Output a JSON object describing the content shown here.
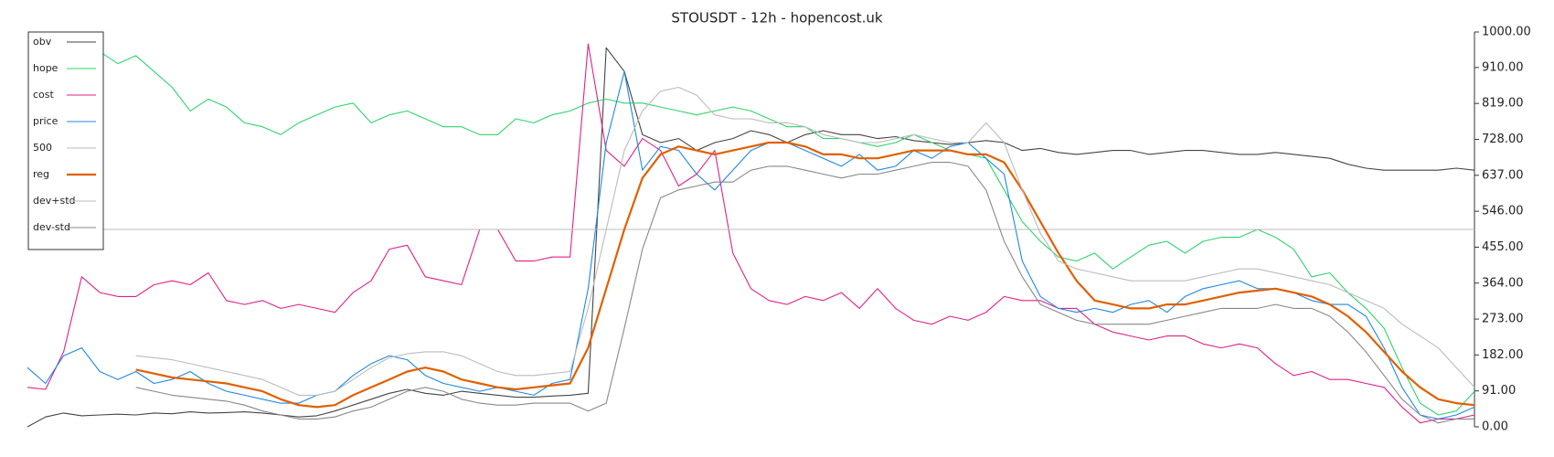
{
  "chart_data": {
    "type": "line",
    "title": "STOUSDT - 12h - hopencost.uk",
    "ylim": [
      0,
      1000
    ],
    "yticks": [
      {
        "value": 0,
        "label": "0.00"
      },
      {
        "value": 91,
        "label": "91.00"
      },
      {
        "value": 182,
        "label": "182.00"
      },
      {
        "value": 273,
        "label": "273.00"
      },
      {
        "value": 364,
        "label": "364.00"
      },
      {
        "value": 455,
        "label": "455.00"
      },
      {
        "value": 546,
        "label": "546.00"
      },
      {
        "value": 637,
        "label": "637.00"
      },
      {
        "value": 728,
        "label": "728.00"
      },
      {
        "value": 819,
        "label": "819.00"
      },
      {
        "value": 910,
        "label": "910.00"
      },
      {
        "value": 1000,
        "label": "1000.00"
      }
    ],
    "y_axis_side": "right",
    "legend": "upper left",
    "grid": false,
    "series": [
      {
        "name": "obv",
        "color": "#444444",
        "values": [
          0,
          25,
          35,
          28,
          30,
          32,
          30,
          35,
          33,
          38,
          35,
          36,
          38,
          35,
          30,
          25,
          28,
          40,
          55,
          70,
          85,
          95,
          85,
          80,
          90,
          85,
          80,
          75,
          75,
          78,
          80,
          85,
          960,
          900,
          740,
          720,
          730,
          700,
          720,
          730,
          750,
          740,
          720,
          740,
          750,
          740,
          740,
          730,
          735,
          725,
          720,
          715,
          720,
          725,
          720,
          700,
          705,
          695,
          690,
          695,
          700,
          700,
          690,
          695,
          700,
          700,
          695,
          690,
          690,
          695,
          690,
          685,
          680,
          665,
          655,
          650,
          650,
          650,
          650,
          655,
          650
        ]
      },
      {
        "name": "hope",
        "color": "#2fd36b",
        "values": [
          null,
          null,
          null,
          null,
          950,
          920,
          940,
          900,
          860,
          800,
          830,
          810,
          770,
          760,
          740,
          770,
          790,
          810,
          820,
          770,
          790,
          800,
          780,
          760,
          760,
          740,
          740,
          780,
          770,
          790,
          800,
          820,
          830,
          820,
          820,
          810,
          800,
          790,
          800,
          810,
          800,
          780,
          760,
          760,
          730,
          730,
          720,
          710,
          720,
          740,
          720,
          700,
          690,
          680,
          600,
          520,
          470,
          430,
          420,
          440,
          400,
          430,
          460,
          470,
          440,
          470,
          480,
          480,
          500,
          480,
          450,
          380,
          390,
          340,
          300,
          250,
          150,
          60,
          30,
          40,
          90
        ]
      },
      {
        "name": "cost",
        "color": "#e0218a",
        "values": [
          100,
          95,
          190,
          380,
          340,
          330,
          330,
          360,
          370,
          360,
          390,
          320,
          310,
          320,
          300,
          310,
          300,
          290,
          340,
          370,
          450,
          460,
          380,
          370,
          360,
          500,
          500,
          420,
          420,
          430,
          430,
          970,
          700,
          660,
          730,
          700,
          610,
          640,
          700,
          440,
          350,
          320,
          310,
          330,
          320,
          340,
          300,
          350,
          300,
          270,
          260,
          280,
          270,
          290,
          330,
          320,
          320,
          300,
          300,
          260,
          240,
          230,
          220,
          230,
          230,
          210,
          200,
          210,
          200,
          160,
          130,
          140,
          120,
          120,
          110,
          100,
          50,
          10,
          20,
          20,
          30
        ]
      },
      {
        "name": "price",
        "color": "#1e88e5",
        "values": [
          150,
          110,
          180,
          200,
          140,
          120,
          140,
          110,
          120,
          140,
          110,
          90,
          80,
          70,
          60,
          60,
          80,
          90,
          130,
          160,
          180,
          170,
          130,
          110,
          100,
          90,
          100,
          90,
          80,
          110,
          120,
          350,
          720,
          900,
          650,
          710,
          700,
          640,
          600,
          650,
          700,
          720,
          720,
          700,
          680,
          660,
          690,
          650,
          660,
          700,
          680,
          710,
          720,
          680,
          640,
          420,
          330,
          300,
          290,
          300,
          290,
          310,
          320,
          290,
          330,
          350,
          360,
          370,
          350,
          350,
          340,
          320,
          310,
          310,
          280,
          200,
          100,
          30,
          20,
          30,
          50
        ]
      },
      {
        "name": "500",
        "color": "#bbbbbb",
        "values": [
          500,
          500,
          500,
          500,
          500,
          500,
          500,
          500,
          500,
          500,
          500,
          500,
          500,
          500,
          500,
          500,
          500,
          500,
          500,
          500,
          500,
          500,
          500,
          500,
          500,
          500,
          500,
          500,
          500,
          500,
          500,
          500,
          500,
          500,
          500,
          500,
          500,
          500,
          500,
          500,
          500,
          500,
          500,
          500,
          500,
          500,
          500,
          500,
          500,
          500,
          500,
          500,
          500,
          500,
          500,
          500,
          500,
          500,
          500,
          500,
          500,
          500,
          500,
          500,
          500,
          500,
          500,
          500,
          500,
          500,
          500,
          500,
          500,
          500,
          500,
          500,
          500,
          500,
          500,
          500,
          500
        ]
      },
      {
        "name": "reg",
        "color": "#e06000",
        "line_width": 2.2,
        "values": [
          null,
          null,
          null,
          null,
          null,
          null,
          145,
          135,
          125,
          120,
          115,
          110,
          100,
          90,
          70,
          55,
          50,
          55,
          80,
          100,
          120,
          140,
          150,
          140,
          120,
          110,
          100,
          95,
          100,
          105,
          110,
          200,
          350,
          500,
          630,
          690,
          710,
          700,
          690,
          700,
          710,
          720,
          720,
          710,
          690,
          690,
          680,
          680,
          690,
          700,
          700,
          700,
          690,
          690,
          670,
          600,
          520,
          440,
          370,
          320,
          310,
          300,
          300,
          310,
          310,
          320,
          330,
          340,
          345,
          350,
          340,
          330,
          310,
          280,
          240,
          190,
          140,
          100,
          70,
          60,
          55
        ]
      },
      {
        "name": "dev+std",
        "color": "#bbbbbb",
        "values": [
          null,
          null,
          null,
          null,
          null,
          null,
          180,
          175,
          170,
          160,
          150,
          140,
          130,
          120,
          100,
          80,
          80,
          90,
          120,
          150,
          175,
          185,
          190,
          190,
          180,
          160,
          140,
          130,
          130,
          135,
          140,
          300,
          500,
          700,
          800,
          850,
          860,
          840,
          790,
          780,
          780,
          770,
          770,
          760,
          740,
          730,
          720,
          720,
          730,
          740,
          730,
          720,
          720,
          770,
          720,
          600,
          490,
          420,
          400,
          390,
          380,
          370,
          370,
          370,
          370,
          380,
          390,
          400,
          400,
          390,
          380,
          370,
          360,
          340,
          320,
          300,
          260,
          230,
          200,
          150,
          100
        ]
      },
      {
        "name": "dev-std",
        "color": "#888888",
        "values": [
          null,
          null,
          null,
          null,
          null,
          null,
          100,
          90,
          80,
          75,
          70,
          65,
          55,
          40,
          30,
          20,
          20,
          25,
          40,
          50,
          70,
          90,
          100,
          90,
          70,
          60,
          55,
          55,
          60,
          60,
          60,
          40,
          60,
          250,
          450,
          580,
          600,
          610,
          620,
          620,
          650,
          660,
          660,
          650,
          640,
          630,
          640,
          640,
          650,
          660,
          670,
          670,
          660,
          600,
          470,
          380,
          310,
          290,
          270,
          260,
          260,
          260,
          260,
          270,
          280,
          290,
          300,
          300,
          300,
          310,
          300,
          300,
          280,
          240,
          190,
          130,
          70,
          30,
          10,
          20,
          20
        ]
      }
    ]
  }
}
